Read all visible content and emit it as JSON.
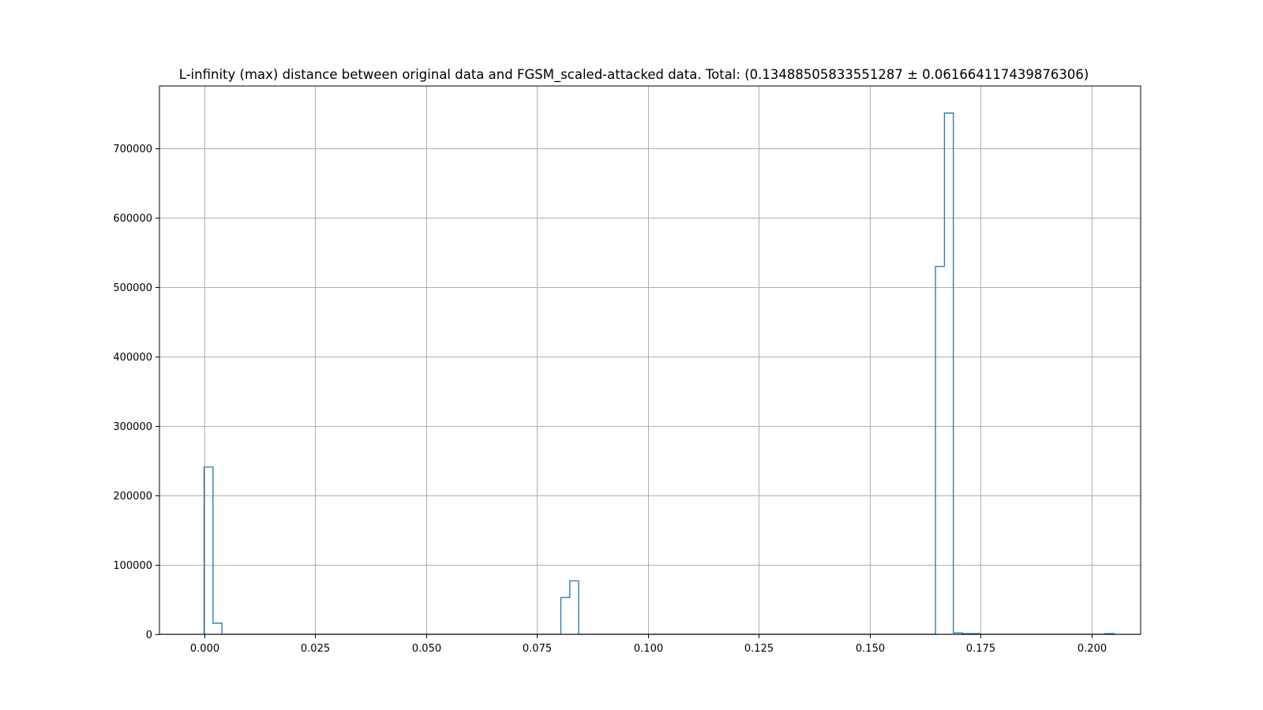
{
  "chart_data": {
    "type": "bar",
    "histtype": "step",
    "title": "L-infinity (max) distance between original data and FGSM_scaled-attacked data. Total: (0.13488505833551287 ± 0.061664117439876306)",
    "xlabel": "",
    "ylabel": "",
    "xlim": [
      -0.01005,
      0.21105
    ],
    "ylim": [
      0,
      790000
    ],
    "xticks": [
      0.0,
      0.025,
      0.05,
      0.075,
      0.1,
      0.125,
      0.15,
      0.175,
      0.2
    ],
    "xtick_labels": [
      "0.000",
      "0.025",
      "0.050",
      "0.075",
      "0.100",
      "0.125",
      "0.150",
      "0.175",
      "0.200"
    ],
    "yticks": [
      0,
      100000,
      200000,
      300000,
      400000,
      500000,
      600000,
      700000
    ],
    "ytick_labels": [
      "0",
      "100000",
      "200000",
      "300000",
      "400000",
      "500000",
      "600000",
      "700000"
    ],
    "grid": true,
    "line_color": "#1f77b4",
    "bin_start": 0.0,
    "bin_width": 0.00201,
    "counts": [
      241000,
      16000,
      0,
      0,
      0,
      0,
      0,
      0,
      0,
      0,
      0,
      0,
      0,
      0,
      0,
      0,
      0,
      0,
      0,
      0,
      0,
      0,
      0,
      0,
      0,
      0,
      0,
      0,
      0,
      0,
      0,
      0,
      0,
      0,
      0,
      0,
      0,
      0,
      0,
      0,
      53000,
      77000,
      0,
      0,
      0,
      0,
      0,
      0,
      0,
      0,
      0,
      0,
      0,
      0,
      0,
      0,
      0,
      0,
      0,
      0,
      0,
      0,
      0,
      0,
      0,
      0,
      0,
      0,
      0,
      0,
      0,
      0,
      0,
      0,
      0,
      0,
      0,
      0,
      0,
      0,
      0,
      0,
      530000,
      751000,
      2000,
      1000,
      1000,
      0,
      0,
      0,
      0,
      0,
      0,
      0,
      0,
      0,
      0,
      0,
      0,
      0,
      0,
      1000
    ]
  }
}
